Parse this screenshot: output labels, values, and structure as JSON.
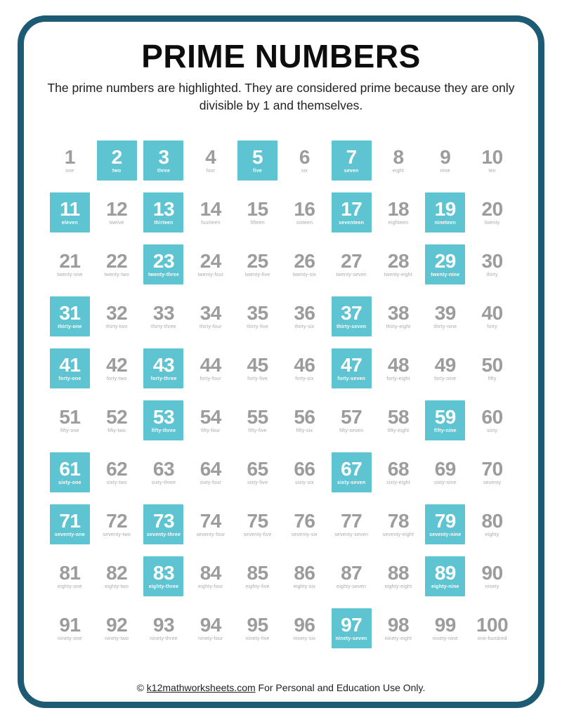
{
  "page": {
    "title": "PRIME NUMBERS",
    "subtitle": "The prime numbers are highlighted. They are considered prime because they are only divisible by 1 and themselves.",
    "footer": {
      "prefix": "© ",
      "link_text": "k12mathworksheets.com",
      "suffix": " For Personal and Education Use Only."
    }
  },
  "colors": {
    "border": "#1d5a73",
    "prime_highlight": "#5ec4d1",
    "prime_text": "#ffffff",
    "number_gray": "#9c9c9c",
    "word_gray": "#a9a9a9"
  },
  "grid": {
    "columns": 10,
    "rows": 10,
    "cells": [
      {
        "n": "1",
        "word": "one",
        "prime": false
      },
      {
        "n": "2",
        "word": "two",
        "prime": true
      },
      {
        "n": "3",
        "word": "three",
        "prime": true
      },
      {
        "n": "4",
        "word": "four",
        "prime": false
      },
      {
        "n": "5",
        "word": "five",
        "prime": true
      },
      {
        "n": "6",
        "word": "six",
        "prime": false
      },
      {
        "n": "7",
        "word": "seven",
        "prime": true
      },
      {
        "n": "8",
        "word": "eight",
        "prime": false
      },
      {
        "n": "9",
        "word": "nine",
        "prime": false
      },
      {
        "n": "10",
        "word": "ten",
        "prime": false
      },
      {
        "n": "11",
        "word": "eleven",
        "prime": true
      },
      {
        "n": "12",
        "word": "twelve",
        "prime": false
      },
      {
        "n": "13",
        "word": "thirteen",
        "prime": true
      },
      {
        "n": "14",
        "word": "fourteen",
        "prime": false
      },
      {
        "n": "15",
        "word": "fifteen",
        "prime": false
      },
      {
        "n": "16",
        "word": "sixteen",
        "prime": false
      },
      {
        "n": "17",
        "word": "seventeen",
        "prime": true
      },
      {
        "n": "18",
        "word": "eighteen",
        "prime": false
      },
      {
        "n": "19",
        "word": "nineteen",
        "prime": true
      },
      {
        "n": "20",
        "word": "twenty",
        "prime": false
      },
      {
        "n": "21",
        "word": "twenty-one",
        "prime": false
      },
      {
        "n": "22",
        "word": "twenty-two",
        "prime": false
      },
      {
        "n": "23",
        "word": "twenty-three",
        "prime": true
      },
      {
        "n": "24",
        "word": "twenty-four",
        "prime": false
      },
      {
        "n": "25",
        "word": "twenty-five",
        "prime": false
      },
      {
        "n": "26",
        "word": "twenty-six",
        "prime": false
      },
      {
        "n": "27",
        "word": "twenty-seven",
        "prime": false
      },
      {
        "n": "28",
        "word": "twenty-eight",
        "prime": false
      },
      {
        "n": "29",
        "word": "twenty-nine",
        "prime": true
      },
      {
        "n": "30",
        "word": "thirty",
        "prime": false
      },
      {
        "n": "31",
        "word": "thirty-one",
        "prime": true
      },
      {
        "n": "32",
        "word": "thirty-two",
        "prime": false
      },
      {
        "n": "33",
        "word": "thirty-three",
        "prime": false
      },
      {
        "n": "34",
        "word": "thirty-four",
        "prime": false
      },
      {
        "n": "35",
        "word": "thirty-five",
        "prime": false
      },
      {
        "n": "36",
        "word": "thirty-six",
        "prime": false
      },
      {
        "n": "37",
        "word": "thirty-seven",
        "prime": true
      },
      {
        "n": "38",
        "word": "thirty-eight",
        "prime": false
      },
      {
        "n": "39",
        "word": "thirty-nine",
        "prime": false
      },
      {
        "n": "40",
        "word": "forty",
        "prime": false
      },
      {
        "n": "41",
        "word": "forty-one",
        "prime": true
      },
      {
        "n": "42",
        "word": "forty-two",
        "prime": false
      },
      {
        "n": "43",
        "word": "forty-three",
        "prime": true
      },
      {
        "n": "44",
        "word": "forty-four",
        "prime": false
      },
      {
        "n": "45",
        "word": "forty-five",
        "prime": false
      },
      {
        "n": "46",
        "word": "forty-six",
        "prime": false
      },
      {
        "n": "47",
        "word": "forty-seven",
        "prime": true
      },
      {
        "n": "48",
        "word": "forty-eight",
        "prime": false
      },
      {
        "n": "49",
        "word": "forty-nine",
        "prime": false
      },
      {
        "n": "50",
        "word": "fifty",
        "prime": false
      },
      {
        "n": "51",
        "word": "fifty-one",
        "prime": false
      },
      {
        "n": "52",
        "word": "fifty-two",
        "prime": false
      },
      {
        "n": "53",
        "word": "fifty-three",
        "prime": true
      },
      {
        "n": "54",
        "word": "fifty-four",
        "prime": false
      },
      {
        "n": "55",
        "word": "fifty-five",
        "prime": false
      },
      {
        "n": "56",
        "word": "fifty-six",
        "prime": false
      },
      {
        "n": "57",
        "word": "fifty-seven",
        "prime": false
      },
      {
        "n": "58",
        "word": "fifty-eight",
        "prime": false
      },
      {
        "n": "59",
        "word": "fifty-nine",
        "prime": true
      },
      {
        "n": "60",
        "word": "sixty",
        "prime": false
      },
      {
        "n": "61",
        "word": "sixty-one",
        "prime": true
      },
      {
        "n": "62",
        "word": "sixty-two",
        "prime": false
      },
      {
        "n": "63",
        "word": "sixty-three",
        "prime": false
      },
      {
        "n": "64",
        "word": "sixty-four",
        "prime": false
      },
      {
        "n": "65",
        "word": "sixty-five",
        "prime": false
      },
      {
        "n": "66",
        "word": "sixty-six",
        "prime": false
      },
      {
        "n": "67",
        "word": "sixty-seven",
        "prime": true
      },
      {
        "n": "68",
        "word": "sixty-eight",
        "prime": false
      },
      {
        "n": "69",
        "word": "sixty-nine",
        "prime": false
      },
      {
        "n": "70",
        "word": "seventy",
        "prime": false
      },
      {
        "n": "71",
        "word": "seventy-one",
        "prime": true
      },
      {
        "n": "72",
        "word": "seventy-two",
        "prime": false
      },
      {
        "n": "73",
        "word": "seventy-three",
        "prime": true
      },
      {
        "n": "74",
        "word": "seventy-four",
        "prime": false
      },
      {
        "n": "75",
        "word": "seventy-five",
        "prime": false
      },
      {
        "n": "76",
        "word": "seventy-six",
        "prime": false
      },
      {
        "n": "77",
        "word": "seventy-seven",
        "prime": false
      },
      {
        "n": "78",
        "word": "seventy-eight",
        "prime": false
      },
      {
        "n": "79",
        "word": "seventy-nine",
        "prime": true
      },
      {
        "n": "80",
        "word": "eighty",
        "prime": false
      },
      {
        "n": "81",
        "word": "eighty-one",
        "prime": false
      },
      {
        "n": "82",
        "word": "eighty-two",
        "prime": false
      },
      {
        "n": "83",
        "word": "eighty-three",
        "prime": true
      },
      {
        "n": "84",
        "word": "eighty-four",
        "prime": false
      },
      {
        "n": "85",
        "word": "eighty-five",
        "prime": false
      },
      {
        "n": "86",
        "word": "eighty-six",
        "prime": false
      },
      {
        "n": "87",
        "word": "eighty-seven",
        "prime": false
      },
      {
        "n": "88",
        "word": "eighty-eight",
        "prime": false
      },
      {
        "n": "89",
        "word": "eighty-nine",
        "prime": true
      },
      {
        "n": "90",
        "word": "ninety",
        "prime": false
      },
      {
        "n": "91",
        "word": "ninety-one",
        "prime": false
      },
      {
        "n": "92",
        "word": "ninety-two",
        "prime": false
      },
      {
        "n": "93",
        "word": "ninety-three",
        "prime": false
      },
      {
        "n": "94",
        "word": "ninety-four",
        "prime": false
      },
      {
        "n": "95",
        "word": "ninety-five",
        "prime": false
      },
      {
        "n": "96",
        "word": "ninety-six",
        "prime": false
      },
      {
        "n": "97",
        "word": "ninety-seven",
        "prime": true
      },
      {
        "n": "98",
        "word": "ninety-eight",
        "prime": false
      },
      {
        "n": "99",
        "word": "ninety-nine",
        "prime": false
      },
      {
        "n": "100",
        "word": "one-hundred",
        "prime": false
      }
    ]
  }
}
